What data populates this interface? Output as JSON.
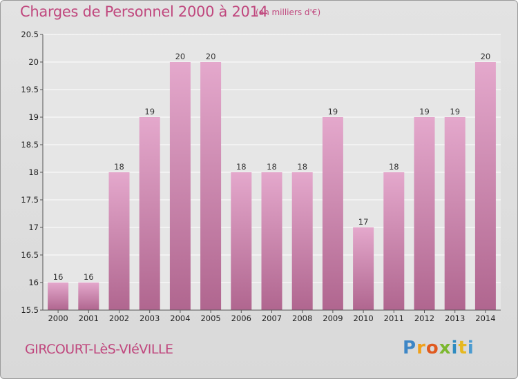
{
  "header": {
    "title": "Charges de Personnel 2000 à 2014",
    "subtitle": "(en milliers d'€)"
  },
  "footer": {
    "commune": "GIRCOURT-LèS-VIéVILLE",
    "logo": "Proxiti"
  },
  "colors": {
    "bar_top": "#e4a8cc",
    "bar_bottom": "#b0668f",
    "title": "#c0487e"
  },
  "chart_data": {
    "type": "bar",
    "title": "Charges de Personnel 2000 à 2014",
    "subtitle": "(en milliers d'€)",
    "categories": [
      "2000",
      "2001",
      "2002",
      "2003",
      "2004",
      "2005",
      "2006",
      "2007",
      "2008",
      "2009",
      "2010",
      "2011",
      "2012",
      "2013",
      "2014"
    ],
    "values": [
      16,
      16,
      18,
      19,
      20,
      20,
      18,
      18,
      18,
      19,
      17,
      18,
      19,
      19,
      20
    ],
    "data_labels": [
      "16",
      "16",
      "18",
      "19",
      "20",
      "20",
      "18",
      "18",
      "18",
      "19",
      "17",
      "18",
      "19",
      "19",
      "20"
    ],
    "ylim": [
      15.5,
      20.5
    ],
    "yticks": [
      "15.5",
      "16",
      "16.5",
      "17",
      "17.5",
      "18",
      "18.5",
      "19",
      "19.5",
      "20",
      "20.5"
    ],
    "grid": true,
    "legend": "none"
  }
}
